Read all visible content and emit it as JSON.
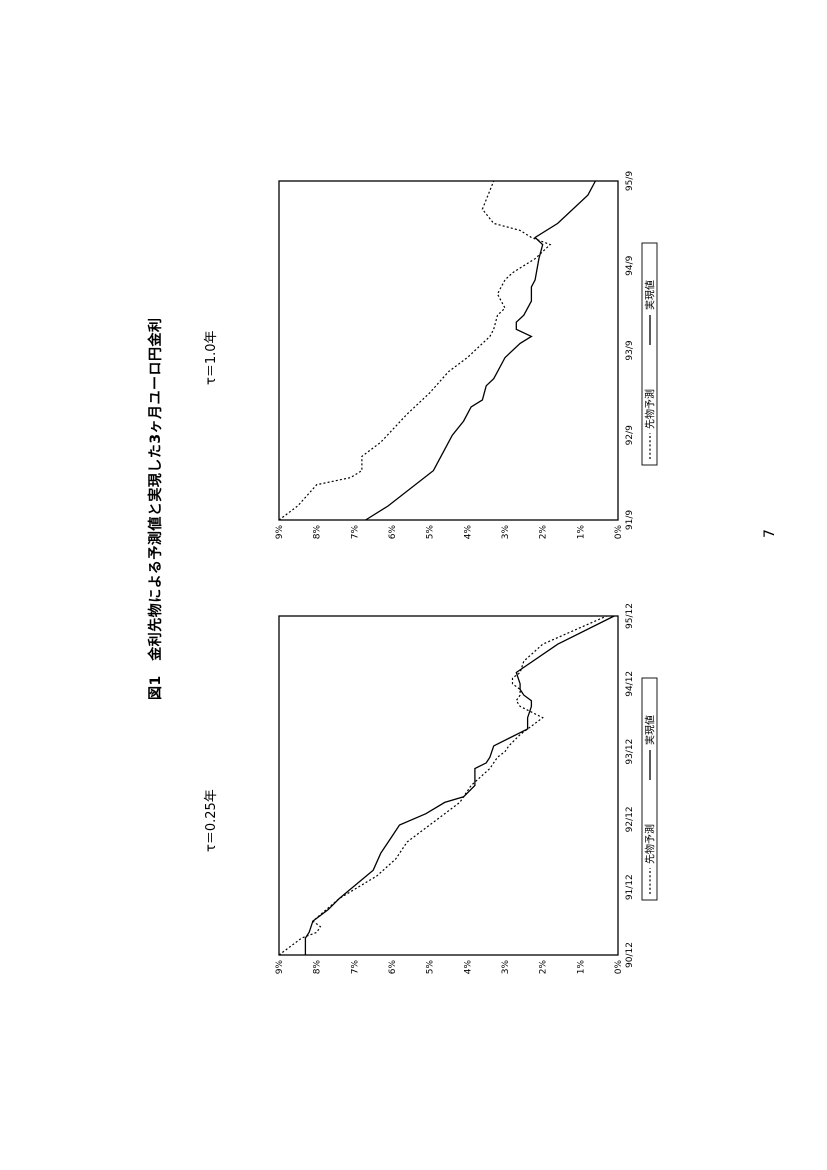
{
  "figure": {
    "title": "図1　金利先物による予測値と実現した3ヶ月ユーロ円金利"
  },
  "page_number": "7",
  "chart_data": [
    {
      "type": "line",
      "title": "τ＝0.25年",
      "x_ticks": [
        "90/12",
        "91/12",
        "92/12",
        "93/12",
        "94/12",
        "95/12"
      ],
      "y_ticks": [
        "0%",
        "1%",
        "2%",
        "3%",
        "4%",
        "5%",
        "6%",
        "7%",
        "8%",
        "9%"
      ],
      "xlim": [
        0,
        60
      ],
      "ylim": [
        0,
        9
      ],
      "legend": [
        "先物予測",
        "実現値"
      ],
      "legend_position": "bottom",
      "series": [
        {
          "name": "先物予測",
          "style": "dotted",
          "x": [
            0,
            3,
            4,
            5,
            6,
            10,
            14,
            17,
            20,
            22,
            24,
            27,
            30,
            33,
            35,
            36,
            37,
            39,
            40,
            42,
            44,
            45,
            46,
            47,
            48,
            49,
            50,
            52,
            55,
            60
          ],
          "y": [
            9.0,
            8.4,
            8.0,
            7.9,
            8.1,
            7.4,
            6.4,
            5.9,
            5.6,
            5.2,
            4.8,
            4.2,
            3.9,
            3.4,
            3.2,
            3.0,
            2.9,
            2.6,
            2.4,
            2.0,
            2.6,
            2.7,
            2.6,
            2.6,
            2.8,
            2.8,
            2.6,
            2.5,
            2.0,
            0.3
          ]
        },
        {
          "name": "実現値",
          "style": "solid",
          "x": [
            0,
            3,
            4,
            6,
            8,
            10,
            15,
            18,
            21,
            23,
            25,
            27,
            28,
            30,
            33,
            34,
            35,
            37,
            40,
            42,
            44,
            45,
            46,
            47,
            48,
            50,
            55,
            60
          ],
          "y": [
            8.3,
            8.3,
            8.2,
            8.1,
            7.7,
            7.4,
            6.5,
            6.3,
            6.0,
            5.8,
            5.1,
            4.6,
            4.1,
            3.8,
            3.8,
            3.5,
            3.4,
            3.3,
            2.4,
            2.4,
            2.3,
            2.3,
            2.5,
            2.6,
            2.6,
            2.7,
            1.6,
            0.1
          ]
        }
      ]
    },
    {
      "type": "line",
      "title": "τ＝1.0年",
      "x_ticks": [
        "91/9",
        "92/9",
        "93/9",
        "94/9",
        "95/9"
      ],
      "y_ticks": [
        "0%",
        "1%",
        "2%",
        "3%",
        "4%",
        "5%",
        "6%",
        "7%",
        "8%",
        "9%"
      ],
      "xlim": [
        0,
        48
      ],
      "ylim": [
        0,
        9
      ],
      "legend": [
        "先物予測",
        "実現値"
      ],
      "legend_position": "bottom",
      "series": [
        {
          "name": "先物予測",
          "style": "dotted",
          "x": [
            0,
            2,
            5,
            6,
            7,
            9,
            11,
            15,
            18,
            21,
            23,
            24,
            26,
            27,
            29,
            30,
            31,
            32,
            33,
            34,
            35,
            36,
            37,
            39,
            40,
            41,
            42,
            44,
            48
          ],
          "y": [
            9.0,
            8.5,
            8.0,
            7.1,
            6.8,
            6.8,
            6.3,
            5.6,
            5.0,
            4.5,
            4.0,
            3.8,
            3.4,
            3.3,
            3.2,
            3.0,
            3.1,
            3.2,
            3.1,
            3.0,
            2.8,
            2.5,
            2.2,
            1.8,
            2.3,
            2.6,
            3.3,
            3.6,
            3.3
          ]
        },
        {
          "name": "実現値",
          "style": "solid",
          "x": [
            0,
            2,
            7,
            10,
            12,
            14,
            16,
            17,
            19,
            20,
            21,
            23,
            25,
            26,
            27,
            28,
            29,
            31,
            32,
            33,
            34,
            37,
            39,
            40,
            42,
            46,
            48
          ],
          "y": [
            6.7,
            6.1,
            4.9,
            4.6,
            4.4,
            4.1,
            3.9,
            3.6,
            3.5,
            3.3,
            3.2,
            3.0,
            2.6,
            2.3,
            2.7,
            2.7,
            2.5,
            2.3,
            2.3,
            2.3,
            2.2,
            2.1,
            2.0,
            2.2,
            1.6,
            0.8,
            0.6
          ]
        }
      ]
    }
  ]
}
